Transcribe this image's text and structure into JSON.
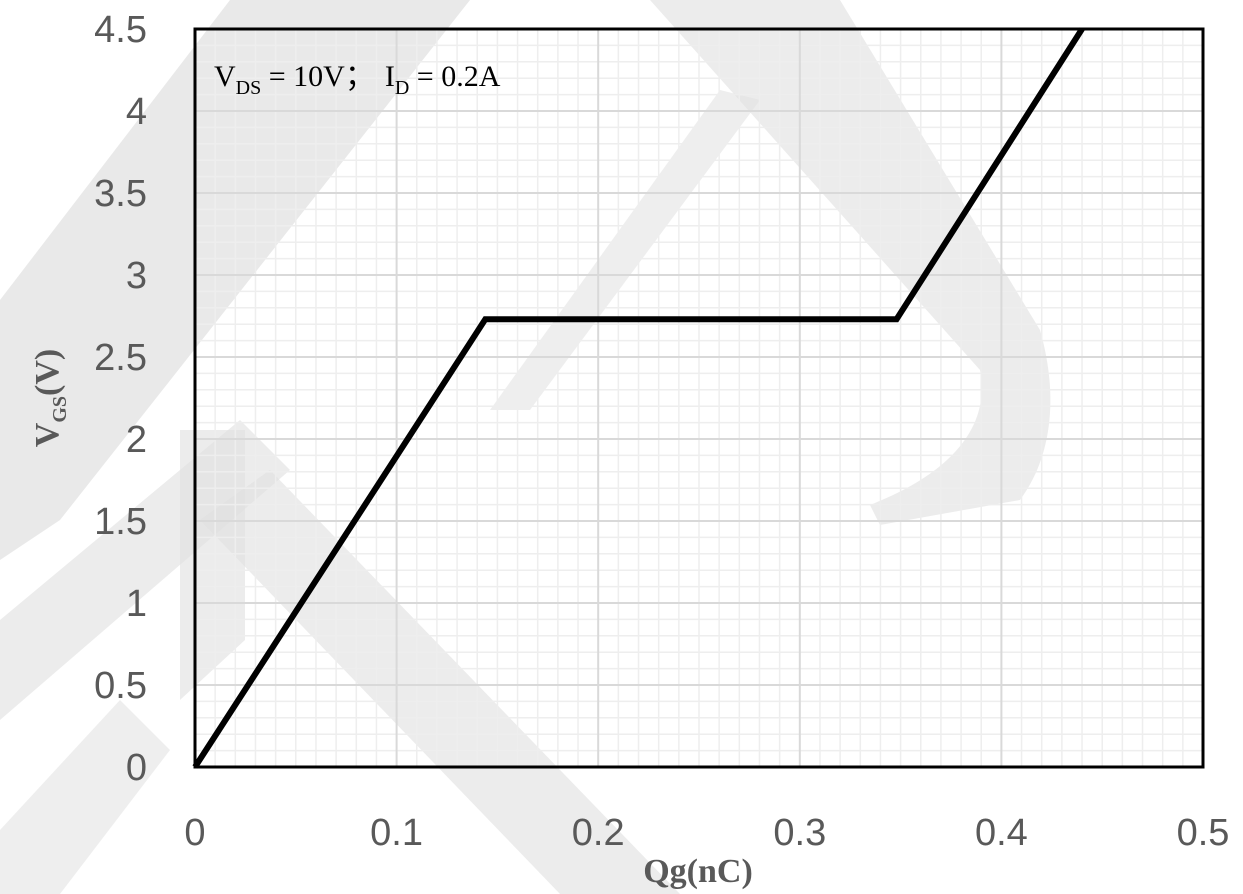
{
  "chart_data": {
    "type": "line",
    "xlabel": "Qg(nC)",
    "ylabel": {
      "main": "V",
      "sub": "GS",
      "rest": "(V)"
    },
    "xlim": [
      0,
      0.5
    ],
    "ylim": [
      0,
      4.5
    ],
    "x_ticks": [
      0,
      0.1,
      0.2,
      0.3,
      0.4,
      0.5
    ],
    "x_tick_labels": [
      "0",
      "0.1",
      "0.2",
      "0.3",
      "0.4",
      "0.5"
    ],
    "y_ticks": [
      0,
      0.5,
      1,
      1.5,
      2,
      2.5,
      3,
      3.5,
      4,
      4.5
    ],
    "y_tick_labels": [
      "0",
      "0.5",
      "1",
      "1.5",
      "2",
      "2.5",
      "3",
      "3.5",
      "4",
      "4.5"
    ],
    "grid": true,
    "annotation": {
      "v": "V",
      "v_sub": "DS",
      "v_rest": " = 10V；",
      "i": "I",
      "i_sub": "D",
      "i_rest": " = 0.2A"
    },
    "series": [
      {
        "x": [
          0,
          0.144,
          0.348,
          0.44
        ],
        "y": [
          0,
          2.73,
          2.73,
          4.5
        ]
      }
    ],
    "colors": {
      "line": "#000000",
      "frame": "#000000",
      "major_grid": "#d9d9d9",
      "minor_grid": "#eeeeee",
      "watermark": "#d9d9d9"
    }
  }
}
